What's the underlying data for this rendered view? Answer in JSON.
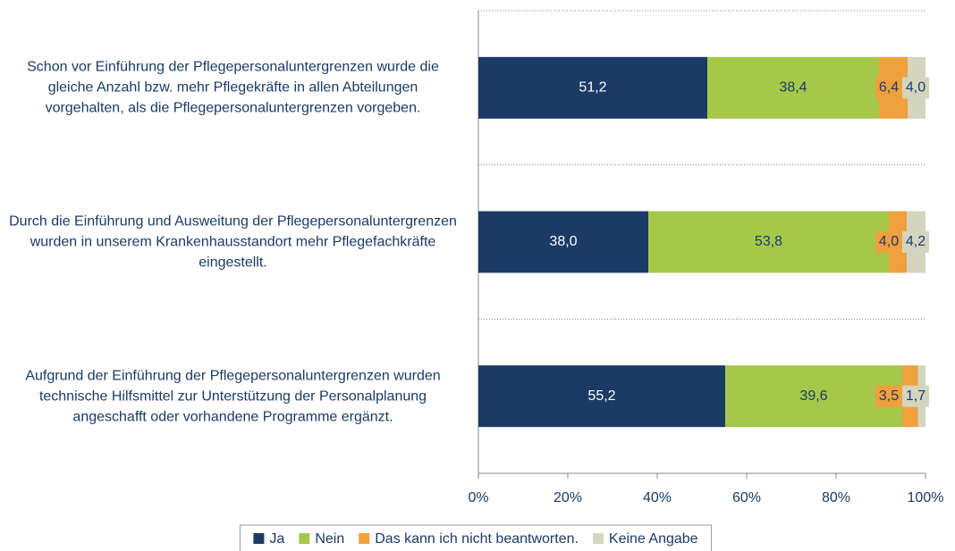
{
  "chart_data": {
    "type": "stacked-barh",
    "categories": [
      "Schon vor Einführung der Pflegepersonaluntergrenzen wurde die gleiche Anzahl bzw. mehr Pflegekräfte in allen Abteilungen vorgehalten, als die Pflegepersonaluntergrenzen vorgeben.",
      "Durch die Einführung und Ausweitung der Pflegepersonaluntergrenzen wurden in unserem Krankenhausstandort mehr Pflegefachkräfte eingestellt.",
      "Aufgrund der Einführung der Pflegepersonaluntergrenzen wurden technische Hilfsmittel zur Unterstützung der Personalplanung angeschafft oder vorhandene Programme ergänzt."
    ],
    "series": [
      {
        "name": "Ja",
        "color": "#1b3b66",
        "values": [
          51.2,
          38.0,
          55.2
        ],
        "value_labels": [
          "51,2",
          "38,0",
          "55,2"
        ]
      },
      {
        "name": "Nein",
        "color": "#a5c84b",
        "values": [
          38.4,
          53.8,
          39.6
        ],
        "value_labels": [
          "38,4",
          "53,8",
          "39,6"
        ]
      },
      {
        "name": "Das kann ich nicht beantworten.",
        "color": "#f0a03c",
        "values": [
          6.4,
          4.0,
          3.5
        ],
        "value_labels": [
          "6,4",
          "4,0",
          "3,5"
        ]
      },
      {
        "name": "Keine Angabe",
        "color": "#d3d5bf",
        "values": [
          4.0,
          4.2,
          1.7
        ],
        "value_labels": [
          "4,0",
          "4,2",
          "1,7"
        ]
      }
    ],
    "xlim": [
      0,
      100
    ],
    "xticks": [
      {
        "value": 0,
        "label": "0%"
      },
      {
        "value": 20,
        "label": "20%"
      },
      {
        "value": 40,
        "label": "40%"
      },
      {
        "value": 60,
        "label": "60%"
      },
      {
        "value": 80,
        "label": "80%"
      },
      {
        "value": 100,
        "label": "100%"
      }
    ],
    "legend": "bottom"
  }
}
